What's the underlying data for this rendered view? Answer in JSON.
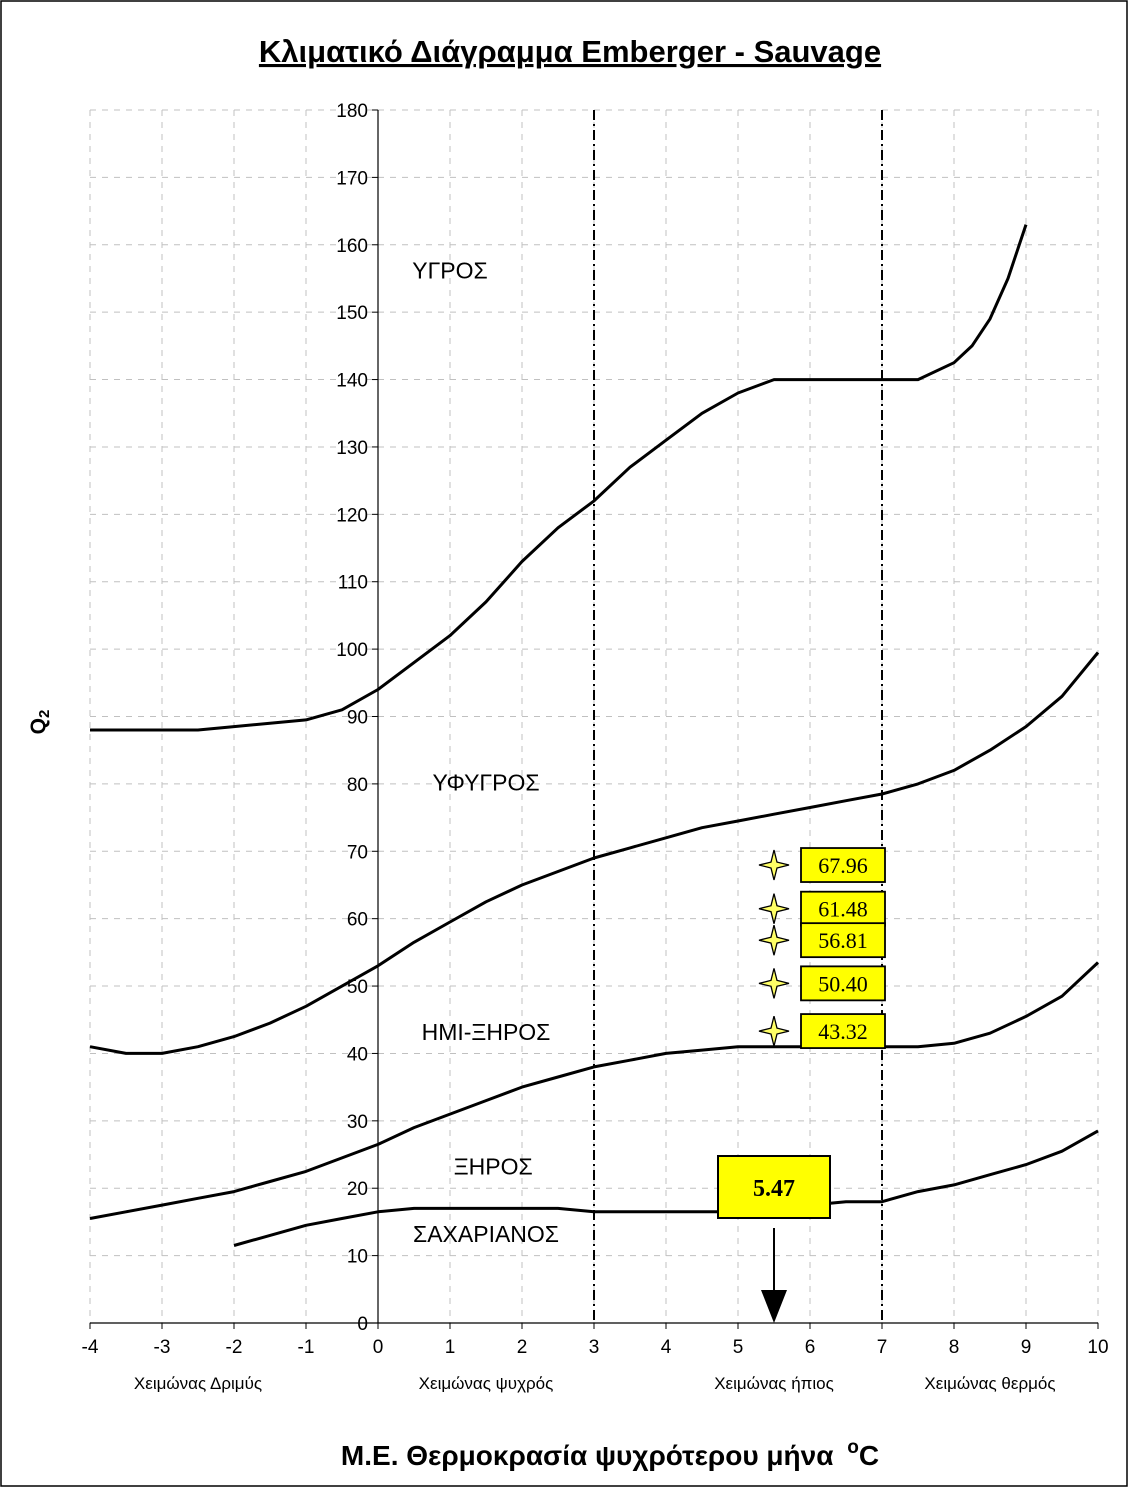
{
  "chart_data": {
    "type": "line",
    "title": "Κλιματικό Διάγραμμα Emberger - Sauvage",
    "xlabel": "Μ.Ε. Θερμοκρασία ψυχρότερου μήνα",
    "xlabel_unit": "oC",
    "ylabel": "Q2",
    "xlim": [
      -4,
      10
    ],
    "ylim": [
      0,
      180
    ],
    "x_ticks": [
      "-4",
      "-3",
      "-2",
      "-1",
      "0",
      "1",
      "2",
      "3",
      "4",
      "5",
      "6",
      "7",
      "8",
      "9",
      "10"
    ],
    "y_ticks": [
      "0",
      "10",
      "20",
      "30",
      "40",
      "50",
      "60",
      "70",
      "80",
      "90",
      "100",
      "110",
      "120",
      "130",
      "140",
      "150",
      "160",
      "170",
      "180"
    ],
    "grid": true,
    "winter_types": [
      {
        "label": "Χειμώνας Δριμύς",
        "x": -2.5
      },
      {
        "label": "Χειμώνας ψυχρός",
        "x": 1.5
      },
      {
        "label": "Χειμώνας ήπιος",
        "x": 5.5
      },
      {
        "label": "Χειμώνας θερμός",
        "x": 8.5
      }
    ],
    "vertical_lines": [
      3,
      7
    ],
    "zones": [
      {
        "label": "ΥΓΡΟΣ",
        "x": 1,
        "y": 155
      },
      {
        "label": "ΥΦΥΓΡΟΣ",
        "x": 1.5,
        "y": 79
      },
      {
        "label": "ΗΜΙ-ΞΗΡΟΣ",
        "x": 1.5,
        "y": 42
      },
      {
        "label": "ΞΗΡΟΣ",
        "x": 1.6,
        "y": 22
      },
      {
        "label": "ΣΑΧΑΡΙΑΝΟΣ",
        "x": 1.5,
        "y": 12
      }
    ],
    "series": [
      {
        "x": [
          -4,
          -2.5,
          -2,
          -1.5,
          -1,
          -0.5,
          0,
          0.5,
          1,
          1.5,
          2,
          2.5,
          3,
          3.5,
          4,
          4.5,
          5,
          5.5,
          6,
          6.5,
          7,
          7.5,
          8,
          8.25,
          8.5,
          8.75,
          9
        ],
        "y": [
          88,
          88,
          88.5,
          89,
          89.5,
          91,
          94,
          98,
          102,
          107,
          113,
          118,
          122,
          127,
          131,
          135,
          138,
          140,
          140,
          140,
          140,
          140,
          142.5,
          145,
          149,
          155,
          163
        ]
      },
      {
        "x": [
          -4,
          -3.5,
          -3,
          -2.5,
          -2,
          -1.5,
          -1,
          -0.5,
          0,
          0.5,
          1,
          1.5,
          2,
          2.5,
          3,
          3.5,
          4,
          4.5,
          5,
          5.5,
          6,
          6.5,
          7,
          7.5,
          8,
          8.5,
          9,
          9.5,
          10
        ],
        "y": [
          41,
          40,
          40,
          41,
          42.5,
          44.5,
          47,
          50,
          53,
          56.5,
          59.5,
          62.5,
          65,
          67,
          69,
          70.5,
          72,
          73.5,
          74.5,
          75.5,
          76.5,
          77.5,
          78.5,
          80,
          82,
          85,
          88.5,
          93,
          99.5
        ]
      },
      {
        "x": [
          -4,
          -3.5,
          -3,
          -2.5,
          -2,
          -1.5,
          -1,
          -0.5,
          0,
          0.5,
          1,
          1.5,
          2,
          2.5,
          3,
          3.5,
          4,
          4.5,
          5,
          5.5,
          6,
          6.5,
          7,
          7.5,
          8,
          8.5,
          9,
          9.5,
          10
        ],
        "y": [
          15.5,
          16.5,
          17.5,
          18.5,
          19.5,
          21,
          22.5,
          24.5,
          26.5,
          29,
          31,
          33,
          35,
          36.5,
          38,
          39,
          40,
          40.5,
          41,
          41,
          41,
          41,
          41,
          41,
          41.5,
          43,
          45.5,
          48.5,
          53.5
        ]
      },
      {
        "x": [
          -2,
          -1.5,
          -1,
          -0.5,
          0,
          0.5,
          1,
          1.5,
          2,
          2.5,
          3,
          3.5,
          4,
          4.5,
          5,
          5.5,
          6,
          6.5,
          7,
          7.5,
          8,
          8.5,
          9,
          9.5,
          10
        ],
        "y": [
          11.5,
          13,
          14.5,
          15.5,
          16.5,
          17,
          17,
          17,
          17,
          17,
          16.5,
          16.5,
          16.5,
          16.5,
          16.5,
          16.5,
          17.5,
          18,
          18,
          19.5,
          20.5,
          22,
          23.5,
          25.5,
          28.5
        ]
      }
    ],
    "station_points": [
      {
        "x": 5.5,
        "y": 67.96,
        "label": "67.96"
      },
      {
        "x": 5.5,
        "y": 61.48,
        "label": "61.48"
      },
      {
        "x": 5.5,
        "y": 56.81,
        "label": "56.81"
      },
      {
        "x": 5.5,
        "y": 50.4,
        "label": "50.40"
      },
      {
        "x": 5.5,
        "y": 43.32,
        "label": "43.32"
      }
    ],
    "temperature_marker": {
      "x": 5.5,
      "label": "5.47"
    },
    "colors": {
      "star_fill": "#ffff66",
      "label_fill": "#ffff00",
      "line": "#000000",
      "grid": "#c0c0c0"
    }
  }
}
